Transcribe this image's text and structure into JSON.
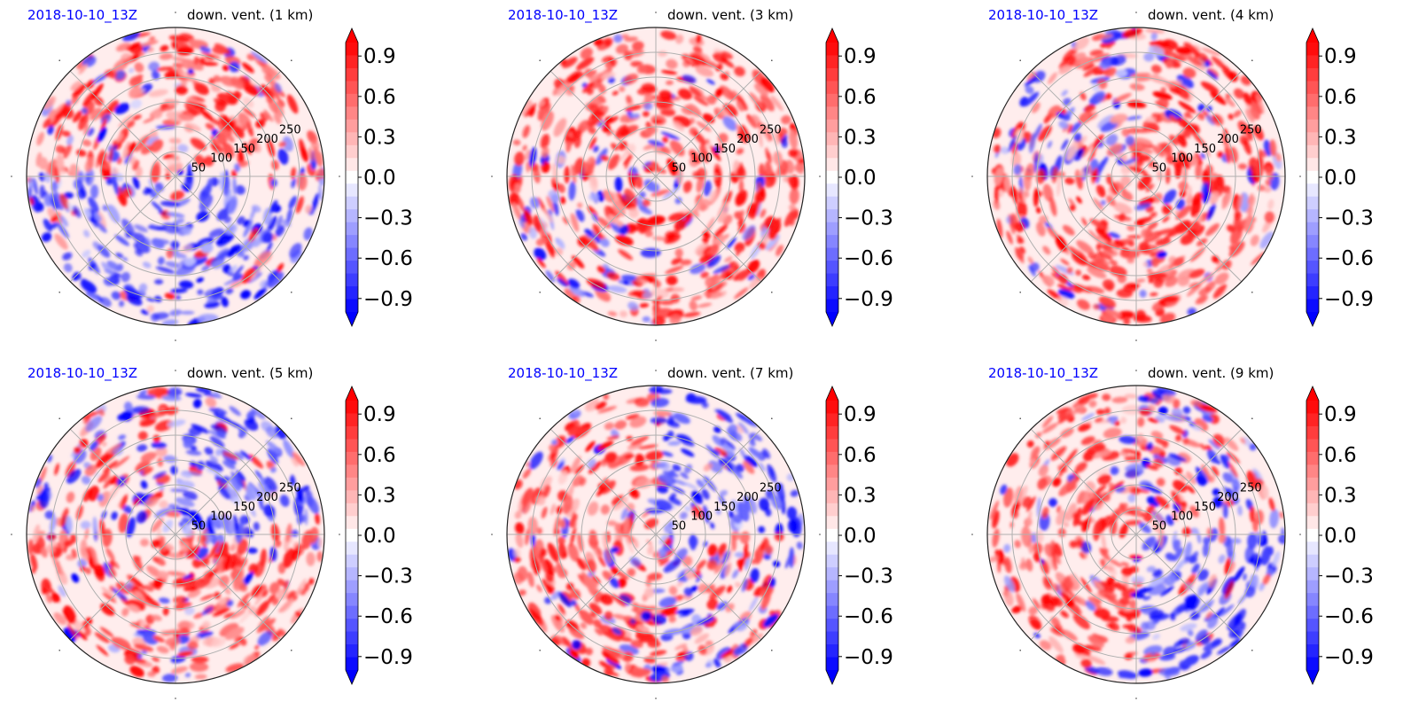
{
  "colors": {
    "positive": "#ff0000",
    "negative": "#0000ff",
    "neutral": "#ffffff",
    "date_text": "#0000ff",
    "grid": "#b0b0b0"
  },
  "colorbar": {
    "ticks": [
      "0.9",
      "0.6",
      "0.3",
      "0.0",
      "−0.3",
      "−0.6",
      "−0.9"
    ],
    "tick_values": [
      0.9,
      0.6,
      0.3,
      0.0,
      -0.3,
      -0.6,
      -0.9
    ],
    "range": [
      -1.0,
      1.0
    ],
    "levels": 21,
    "extend": "both",
    "cmap": "bwr"
  },
  "chart_data": [
    {
      "type": "heatmap",
      "projection": "polar",
      "date": "2018-10-10_13Z",
      "title": "down. vent. (1 km)",
      "radial_ticks": [
        "50",
        "100",
        "150",
        "200",
        "250"
      ],
      "radial_values": [
        50,
        100,
        150,
        200,
        250
      ],
      "radial_max": 300,
      "dominant_sign_by_quadrant": {
        "NW": "positive",
        "NE": "positive",
        "SW": "negative",
        "SE": "negative"
      }
    },
    {
      "type": "heatmap",
      "projection": "polar",
      "date": "2018-10-10_13Z",
      "title": "down. vent. (3 km)",
      "radial_ticks": [
        "50",
        "100",
        "150",
        "200",
        "250"
      ],
      "radial_values": [
        50,
        100,
        150,
        200,
        250
      ],
      "radial_max": 300,
      "dominant_sign_by_quadrant": {
        "NW": "positive",
        "NE": "positive",
        "SW": "mixed",
        "SE": "positive"
      }
    },
    {
      "type": "heatmap",
      "projection": "polar",
      "date": "2018-10-10_13Z",
      "title": "down. vent. (4 km)",
      "radial_ticks": [
        "50",
        "100",
        "150",
        "200",
        "250"
      ],
      "radial_values": [
        50,
        100,
        150,
        200,
        250
      ],
      "radial_max": 300,
      "dominant_sign_by_quadrant": {
        "NW": "mixed",
        "NE": "positive",
        "SW": "positive",
        "SE": "positive"
      }
    },
    {
      "type": "heatmap",
      "projection": "polar",
      "date": "2018-10-10_13Z",
      "title": "down. vent. (5 km)",
      "radial_ticks": [
        "50",
        "100",
        "150",
        "200",
        "250"
      ],
      "radial_values": [
        50,
        100,
        150,
        200,
        250
      ],
      "radial_max": 300,
      "dominant_sign_by_quadrant": {
        "NW": "mixed",
        "NE": "negative",
        "SW": "positive",
        "SE": "positive"
      }
    },
    {
      "type": "heatmap",
      "projection": "polar",
      "date": "2018-10-10_13Z",
      "title": "down. vent. (7 km)",
      "radial_ticks": [
        "50",
        "100",
        "150",
        "200",
        "250"
      ],
      "radial_values": [
        50,
        100,
        150,
        200,
        250
      ],
      "radial_max": 300,
      "dominant_sign_by_quadrant": {
        "NW": "positive",
        "NE": "negative",
        "SW": "positive",
        "SE": "mixed"
      }
    },
    {
      "type": "heatmap",
      "projection": "polar",
      "date": "2018-10-10_13Z",
      "title": "down. vent. (9 km)",
      "radial_ticks": [
        "50",
        "100",
        "150",
        "200",
        "250"
      ],
      "radial_values": [
        50,
        100,
        150,
        200,
        250
      ],
      "radial_max": 300,
      "dominant_sign_by_quadrant": {
        "NW": "positive",
        "NE": "mixed",
        "SW": "positive",
        "SE": "negative"
      }
    }
  ]
}
